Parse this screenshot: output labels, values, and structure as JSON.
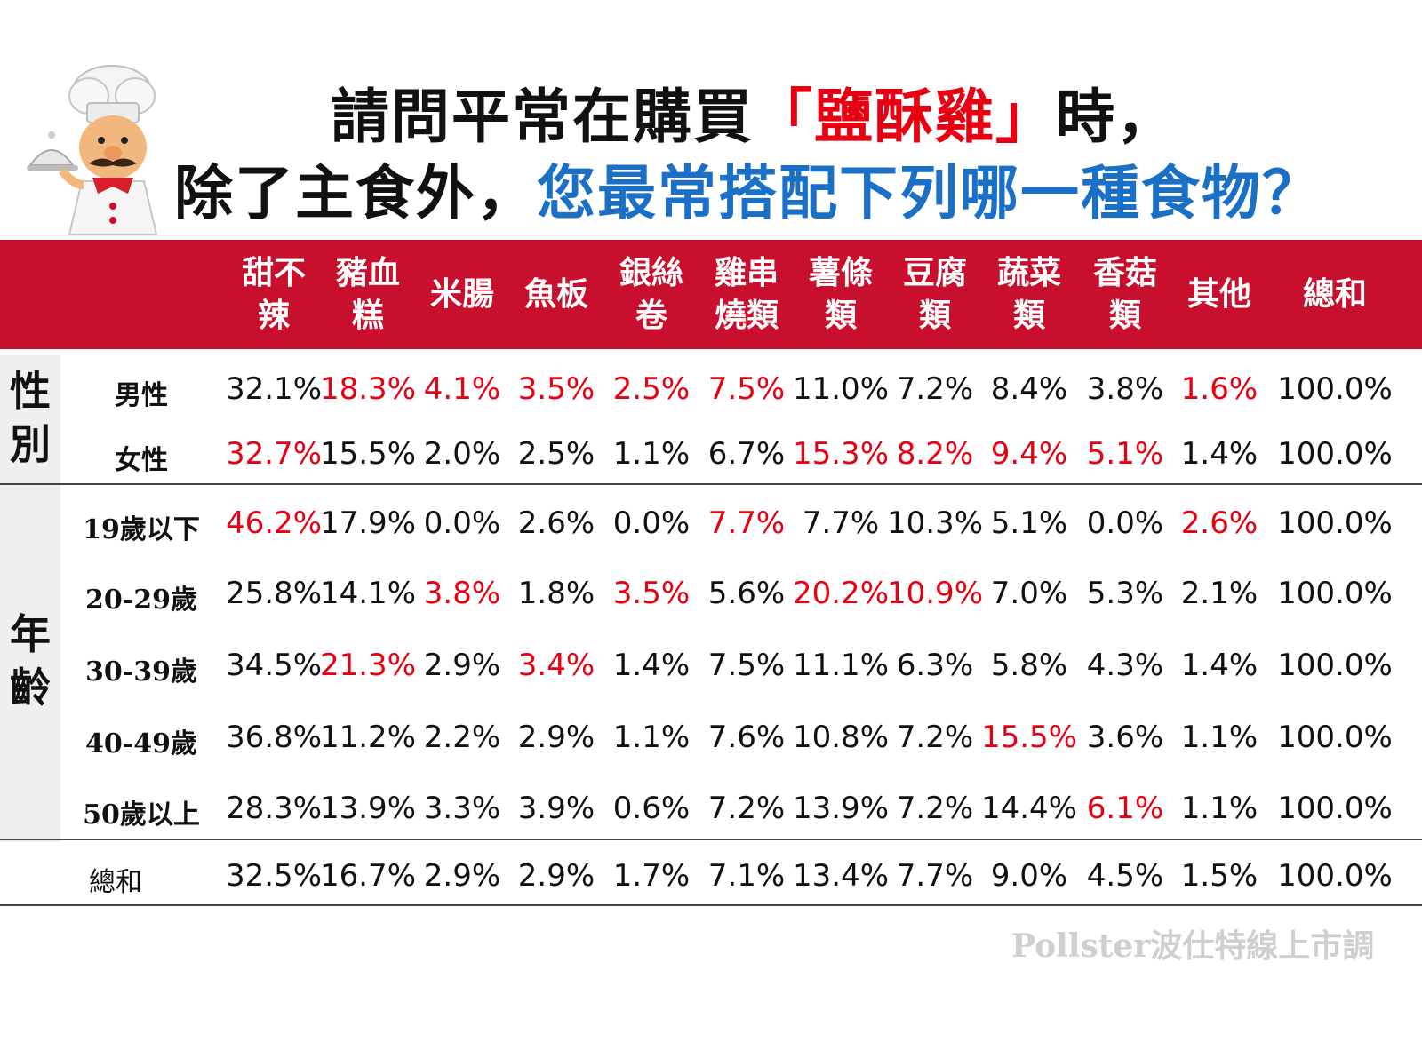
{
  "title": {
    "line1_a": "請問平常在購買",
    "line1_b": "「鹽酥雞」",
    "line1_c": "時，",
    "line2_a": "除了主食外，",
    "line2_b": "您最常搭配下列哪一種食物？"
  },
  "chef_icon": "chef-cartoon-icon",
  "colors": {
    "header": "#c8102e",
    "highlight": "#e60012",
    "blue": "#1a6fc7"
  },
  "watermark": "Pollster波仕特線上市調",
  "chart_data": {
    "type": "table",
    "columns": [
      "甜不辣",
      "豬血糕",
      "米腸",
      "魚板",
      "銀絲卷",
      "雞串燒類",
      "薯條類",
      "豆腐類",
      "蔬菜類",
      "香菇類",
      "其他",
      "總和"
    ],
    "groups": [
      {
        "label": "性別",
        "rows": [
          0,
          1
        ]
      },
      {
        "label": "年齡",
        "rows": [
          2,
          3,
          4,
          5,
          6
        ]
      }
    ],
    "rows": [
      {
        "label": "男性",
        "values": [
          "32.1%",
          "18.3%",
          "4.1%",
          "3.5%",
          "2.5%",
          "7.5%",
          "11.0%",
          "7.2%",
          "8.4%",
          "3.8%",
          "1.6%",
          "100.0%"
        ],
        "highlight": [
          1,
          2,
          3,
          4,
          5,
          10
        ]
      },
      {
        "label": "女性",
        "values": [
          "32.7%",
          "15.5%",
          "2.0%",
          "2.5%",
          "1.1%",
          "6.7%",
          "15.3%",
          "8.2%",
          "9.4%",
          "5.1%",
          "1.4%",
          "100.0%"
        ],
        "highlight": [
          0,
          6,
          7,
          8,
          9
        ]
      },
      {
        "label": "19歲以下",
        "values": [
          "46.2%",
          "17.9%",
          "0.0%",
          "2.6%",
          "0.0%",
          "7.7%",
          "7.7%",
          "10.3%",
          "5.1%",
          "0.0%",
          "2.6%",
          "100.0%"
        ],
        "highlight": [
          0,
          5,
          10
        ]
      },
      {
        "label": "20-29歲",
        "values": [
          "25.8%",
          "14.1%",
          "3.8%",
          "1.8%",
          "3.5%",
          "5.6%",
          "20.2%",
          "10.9%",
          "7.0%",
          "5.3%",
          "2.1%",
          "100.0%"
        ],
        "highlight": [
          2,
          4,
          6,
          7
        ]
      },
      {
        "label": "30-39歲",
        "values": [
          "34.5%",
          "21.3%",
          "2.9%",
          "3.4%",
          "1.4%",
          "7.5%",
          "11.1%",
          "6.3%",
          "5.8%",
          "4.3%",
          "1.4%",
          "100.0%"
        ],
        "highlight": [
          1,
          3
        ]
      },
      {
        "label": "40-49歲",
        "values": [
          "36.8%",
          "11.2%",
          "2.2%",
          "2.9%",
          "1.1%",
          "7.6%",
          "10.8%",
          "7.2%",
          "15.5%",
          "3.6%",
          "1.1%",
          "100.0%"
        ],
        "highlight": [
          8
        ]
      },
      {
        "label": "50歲以上",
        "values": [
          "28.3%",
          "13.9%",
          "3.3%",
          "3.9%",
          "0.6%",
          "7.2%",
          "13.9%",
          "7.2%",
          "14.4%",
          "6.1%",
          "1.1%",
          "100.0%"
        ],
        "highlight": [
          9
        ]
      },
      {
        "label": "總和",
        "values": [
          "32.5%",
          "16.7%",
          "2.9%",
          "2.9%",
          "1.7%",
          "7.1%",
          "13.4%",
          "7.7%",
          "9.0%",
          "4.5%",
          "1.5%",
          "100.0%"
        ],
        "highlight": []
      }
    ]
  }
}
